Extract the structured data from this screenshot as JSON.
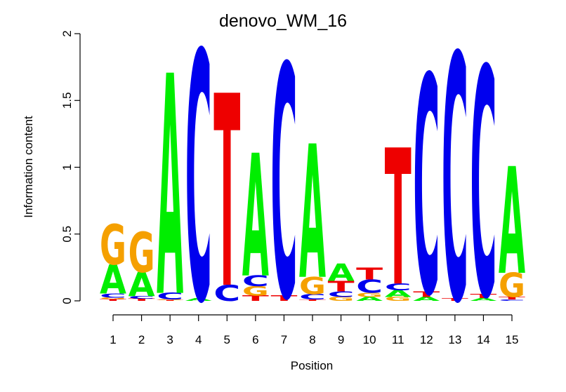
{
  "chart_data": {
    "type": "sequence-logo",
    "title": "denovo_WM_16",
    "xlabel": "Position",
    "ylabel": "Information content",
    "ylim": [
      0,
      2
    ],
    "yticks": [
      "0",
      "0.5",
      "1",
      "1.5",
      "2"
    ],
    "positions": [
      "1",
      "2",
      "3",
      "4",
      "5",
      "6",
      "7",
      "8",
      "9",
      "10",
      "11",
      "12",
      "13",
      "14",
      "15"
    ],
    "colors": {
      "A": "#00ee00",
      "C": "#0000ee",
      "G": "#f5a000",
      "T": "#ee0000"
    },
    "columns": [
      [
        {
          "l": "T",
          "h": 0.012
        },
        {
          "l": "G",
          "h": 0.012
        },
        {
          "l": "C",
          "h": 0.03
        },
        {
          "l": "A",
          "h": 0.22
        },
        {
          "l": "G",
          "h": 0.3
        }
      ],
      [
        {
          "l": "T",
          "h": 0.015
        },
        {
          "l": "C",
          "h": 0.02
        },
        {
          "l": "A",
          "h": 0.18
        },
        {
          "l": "G",
          "h": 0.3
        }
      ],
      [
        {
          "l": "T",
          "h": 0.005
        },
        {
          "l": "G",
          "h": 0.005
        },
        {
          "l": "C",
          "h": 0.05
        },
        {
          "l": "A",
          "h": 1.65
        }
      ],
      [
        {
          "l": "A",
          "h": 0.02
        },
        {
          "l": "C",
          "h": 1.86
        }
      ],
      [
        {
          "l": "C",
          "h": 0.12
        },
        {
          "l": "T",
          "h": 1.44
        }
      ],
      [
        {
          "l": "T",
          "h": 0.04
        },
        {
          "l": "G",
          "h": 0.07
        },
        {
          "l": "C",
          "h": 0.08
        },
        {
          "l": "A",
          "h": 0.92
        }
      ],
      [
        {
          "l": "T",
          "h": 0.04
        },
        {
          "l": "C",
          "h": 1.74
        }
      ],
      [
        {
          "l": "T",
          "h": 0.01
        },
        {
          "l": "C",
          "h": 0.04
        },
        {
          "l": "G",
          "h": 0.13
        },
        {
          "l": "A",
          "h": 1.0
        }
      ],
      [
        {
          "l": "G",
          "h": 0.03
        },
        {
          "l": "C",
          "h": 0.04
        },
        {
          "l": "T",
          "h": 0.08
        },
        {
          "l": "A",
          "h": 0.13
        }
      ],
      [
        {
          "l": "A",
          "h": 0.03
        },
        {
          "l": "G",
          "h": 0.03
        },
        {
          "l": "C",
          "h": 0.1
        },
        {
          "l": "T",
          "h": 0.09
        }
      ],
      [
        {
          "l": "G",
          "h": 0.03
        },
        {
          "l": "A",
          "h": 0.05
        },
        {
          "l": "C",
          "h": 0.05
        },
        {
          "l": "T",
          "h": 1.02
        }
      ],
      [
        {
          "l": "A",
          "h": 0.03
        },
        {
          "l": "T",
          "h": 0.04
        },
        {
          "l": "C",
          "h": 1.63
        }
      ],
      [
        {
          "l": "T",
          "h": 0.02
        },
        {
          "l": "C",
          "h": 1.84
        }
      ],
      [
        {
          "l": "A",
          "h": 0.02
        },
        {
          "l": "T",
          "h": 0.03
        },
        {
          "l": "C",
          "h": 1.71
        }
      ],
      [
        {
          "l": "C",
          "h": 0.01
        },
        {
          "l": "T",
          "h": 0.02
        },
        {
          "l": "G",
          "h": 0.18
        },
        {
          "l": "A",
          "h": 0.8
        }
      ]
    ]
  }
}
